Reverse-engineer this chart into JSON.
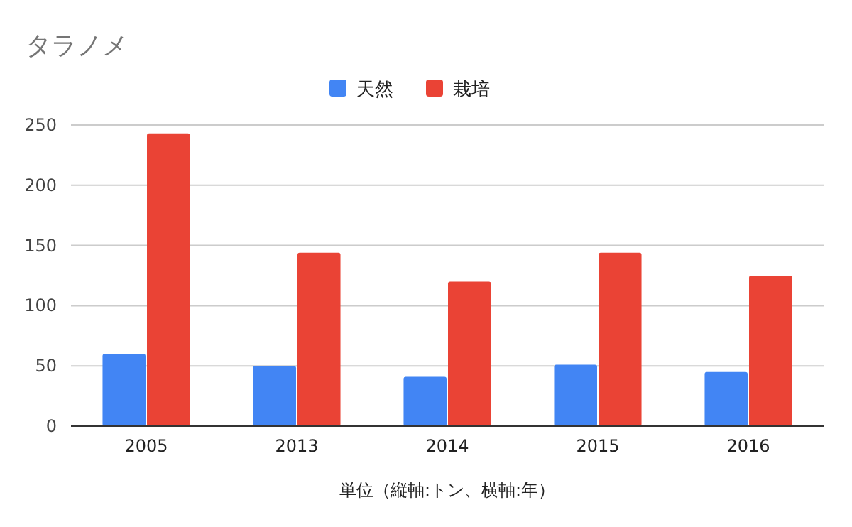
{
  "chart_data": {
    "type": "bar",
    "title": "タラノメ",
    "xlabel": "単位（縦軸:トン、横軸:年）",
    "categories": [
      "2005",
      "2013",
      "2014",
      "2015",
      "2016"
    ],
    "series": [
      {
        "name": "天然",
        "color": "#4285f4",
        "values": [
          60,
          50,
          41,
          51,
          45
        ]
      },
      {
        "name": "栽培",
        "color": "#ea4335",
        "values": [
          243,
          144,
          120,
          144,
          125
        ]
      }
    ],
    "ylim": [
      0,
      250
    ],
    "yticks": [
      0,
      50,
      100,
      150,
      200,
      250
    ],
    "grid": "y",
    "legend": "top"
  }
}
